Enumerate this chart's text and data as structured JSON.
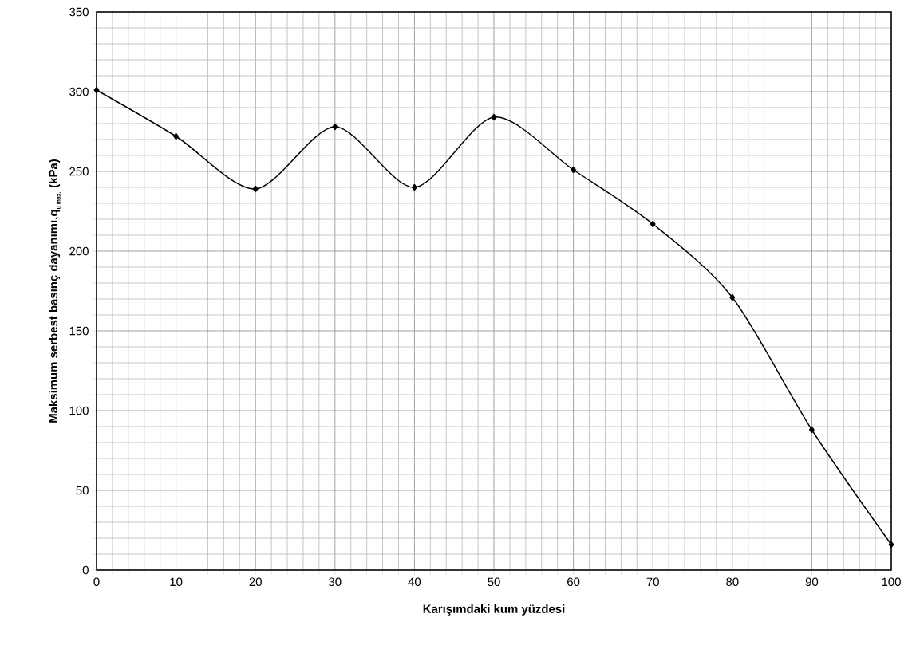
{
  "chart_data": {
    "type": "line",
    "xlabel": "Karışımdaki kum yüzdesi",
    "ylabel": "\\mbox{Maksimum serbest basınç dayanımı,q}_{\\mbox{\\scriptsize u max.}}\\mbox{ (kPa)}",
    "x": [
      0,
      10,
      20,
      30,
      40,
      50,
      60,
      70,
      80,
      90,
      100
    ],
    "series": [
      {
        "color": "#000000",
        "values": [
          301,
          272,
          239,
          278,
          240,
          284,
          251,
          217,
          171,
          88,
          16
        ]
      }
    ],
    "xlim": [
      0,
      100
    ],
    "xticks": [
      0,
      10,
      20,
      30,
      40,
      50,
      60,
      70,
      80,
      90,
      100
    ],
    "ylim": [
      0,
      350
    ],
    "yticks": [
      0,
      50,
      100,
      150,
      200,
      250,
      300,
      350
    ],
    "grid": true,
    "marker": "diamond",
    "line_style": "solid"
  }
}
